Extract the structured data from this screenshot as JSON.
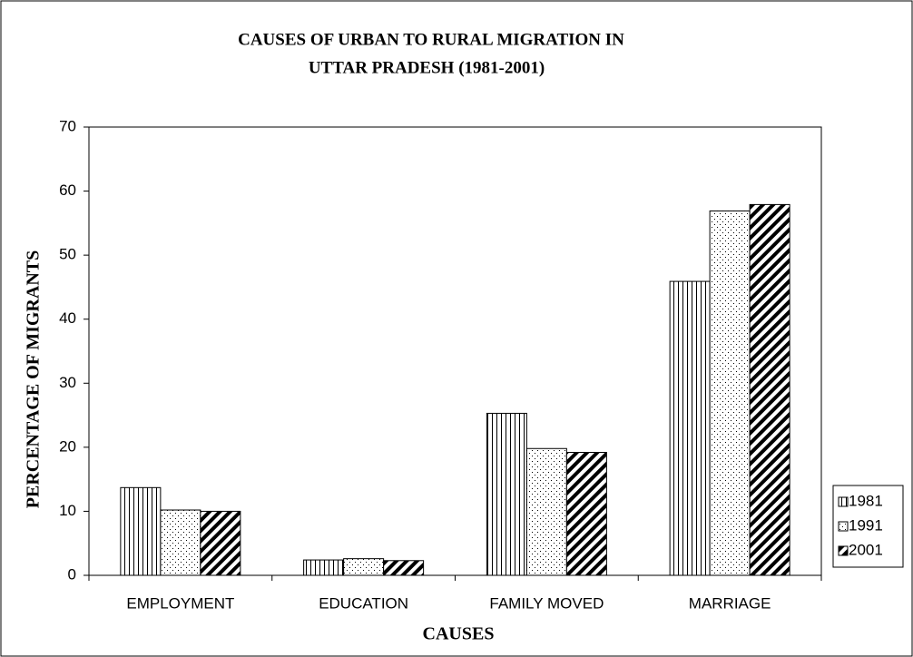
{
  "chart_data": {
    "type": "bar",
    "title": [
      "CAUSES OF URBAN TO RURAL MIGRATION IN",
      "UTTAR PRADESH  (1981-2001)"
    ],
    "x_label": "CAUSES",
    "y_label": "PERCENTAGE OF MIGRANTS",
    "categories": [
      "EMPLOYMENT",
      "EDUCATION",
      "FAMILY MOVED",
      "MARRIAGE"
    ],
    "series": [
      {
        "name": "1981",
        "color": "#000000",
        "pattern": "vertical",
        "values": [
          13.7,
          2.4,
          25.3,
          45.9
        ]
      },
      {
        "name": "1991",
        "color": "#000000",
        "pattern": "dots",
        "values": [
          10.2,
          2.6,
          19.8,
          56.9
        ]
      },
      {
        "name": "2001",
        "color": "#000000",
        "pattern": "diagonal",
        "values": [
          10.0,
          2.3,
          19.2,
          57.9
        ]
      }
    ],
    "ylim": [
      0,
      70
    ],
    "yticks": [
      0,
      10,
      20,
      30,
      40,
      50,
      60,
      70
    ],
    "grid": false,
    "legend": "right"
  }
}
